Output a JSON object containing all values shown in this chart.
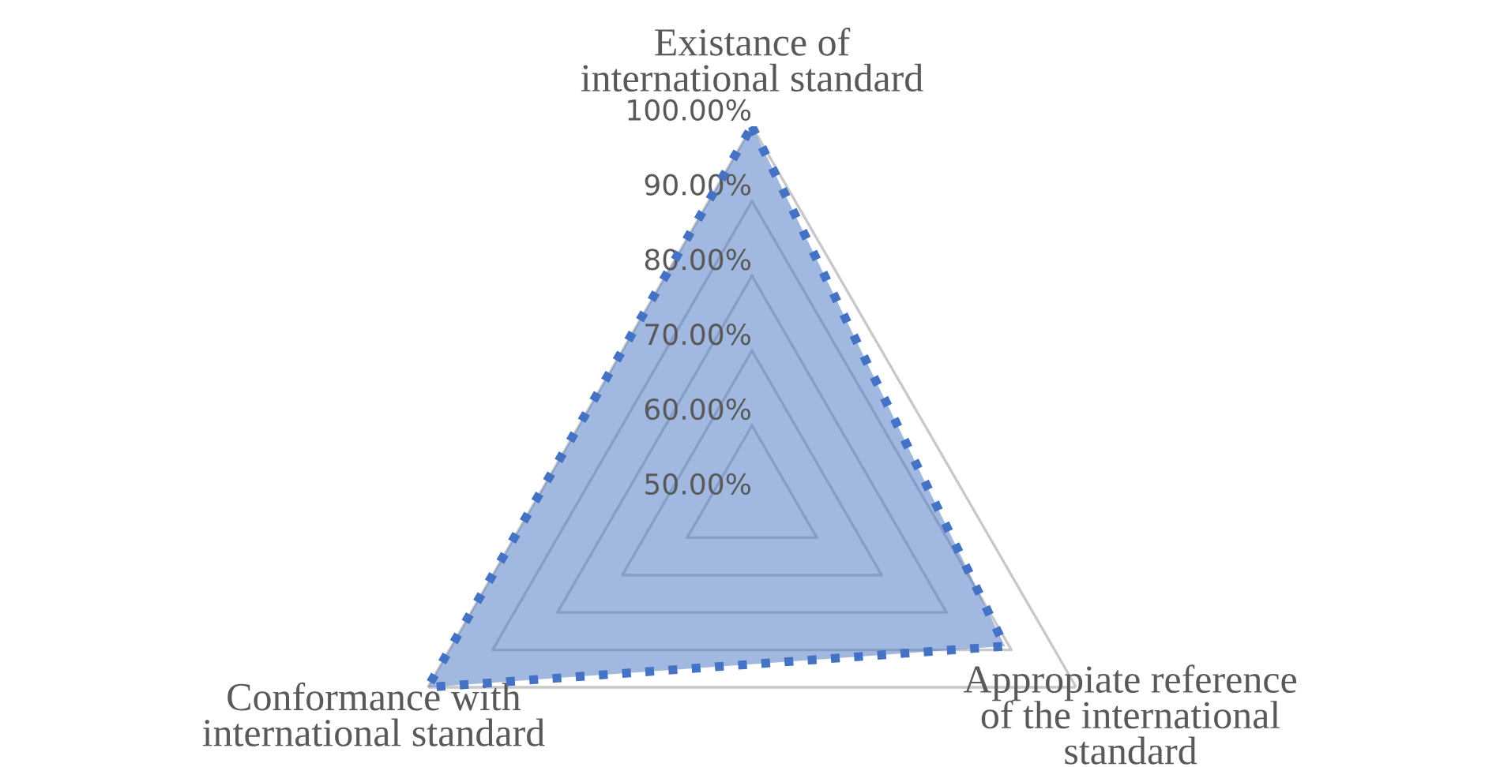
{
  "chart_data": {
    "type": "radar",
    "categories": [
      "Existance of\ninternational standard",
      "Appropiate reference\nof the international\nstandard",
      "Conformance with\ninternational standard"
    ],
    "series": [
      {
        "color": "#4472c4",
        "values": [
          100,
          89,
          100
        ]
      }
    ],
    "ylim": [
      50,
      100
    ],
    "yticks": [
      {
        "value": 50,
        "label": "50.00%"
      },
      {
        "value": 60,
        "label": "60.00%"
      },
      {
        "value": 70,
        "label": "70.00%"
      },
      {
        "value": 80,
        "label": "80.00%"
      },
      {
        "value": 90,
        "label": "90.00%"
      },
      {
        "value": 100,
        "label": "100.00%"
      }
    ],
    "grid": true,
    "line_style": "dotted"
  }
}
